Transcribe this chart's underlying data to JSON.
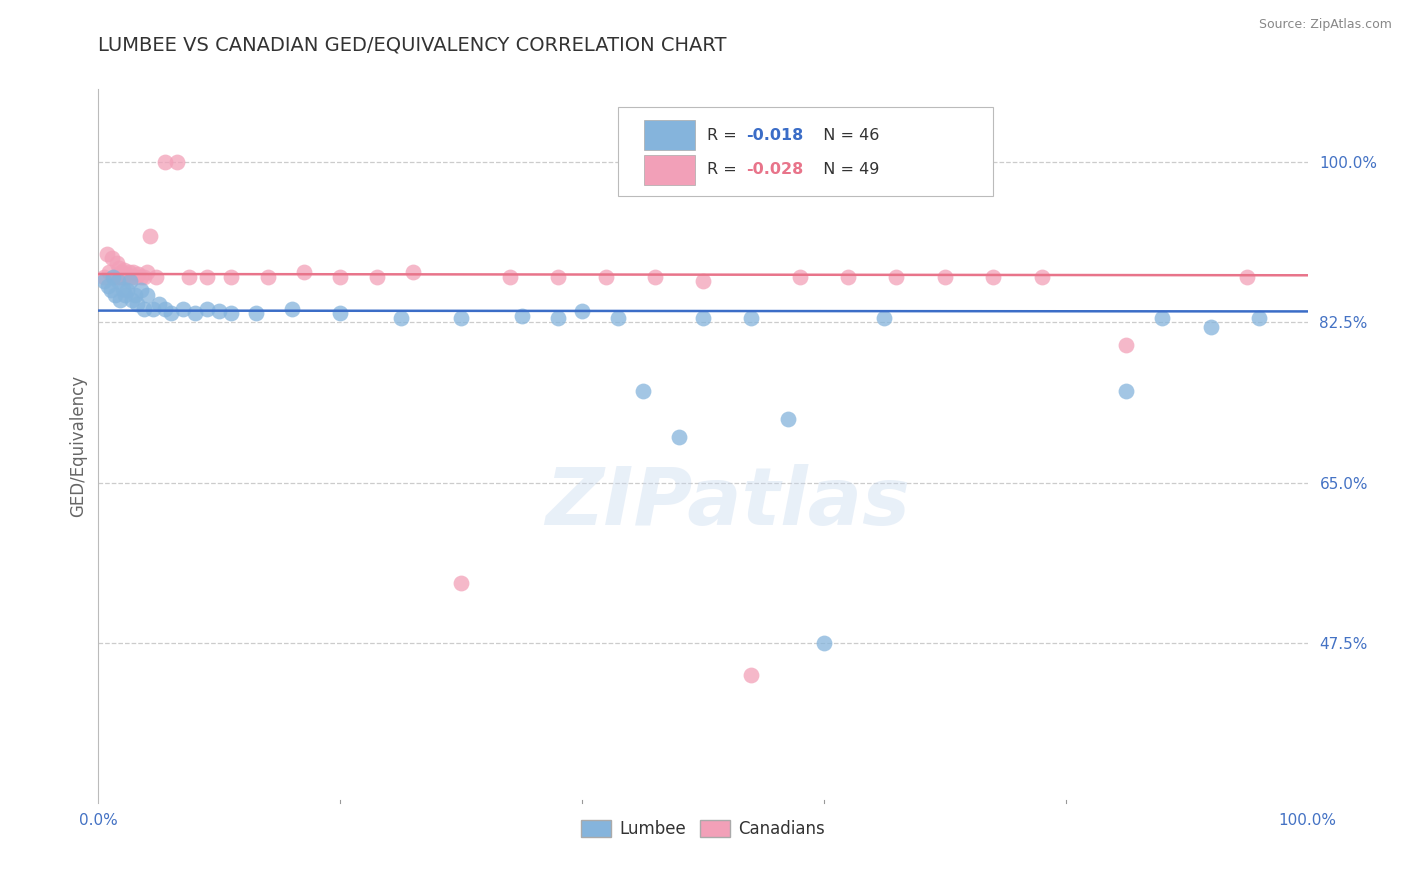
{
  "title": "LUMBEE VS CANADIAN GED/EQUIVALENCY CORRELATION CHART",
  "source": "Source: ZipAtlas.com",
  "ylabel": "GED/Equivalency",
  "xlim": [
    0.0,
    1.0
  ],
  "ylim": [
    0.3,
    1.08
  ],
  "ytick_vals": [
    0.475,
    0.65,
    0.825,
    1.0
  ],
  "ytick_labels": [
    "47.5%",
    "65.0%",
    "82.5%",
    "100.0%"
  ],
  "xtick_vals": [
    0.0,
    0.2,
    0.4,
    0.6,
    0.8,
    1.0
  ],
  "xtick_labels": [
    "0.0%",
    "",
    "",
    "",
    "",
    "100.0%"
  ],
  "watermark": "ZIPatlas",
  "lumbee_R": -0.018,
  "lumbee_N": 46,
  "canadian_R": -0.028,
  "canadian_N": 49,
  "lumbee_color": "#85B4DC",
  "canadian_color": "#F2A0B8",
  "lumbee_line_color": "#3B6DC7",
  "canadian_line_color": "#E8748A",
  "lumbee_x": [
    0.005,
    0.008,
    0.01,
    0.012,
    0.014,
    0.016,
    0.018,
    0.02,
    0.022,
    0.024,
    0.026,
    0.028,
    0.03,
    0.032,
    0.035,
    0.038,
    0.04,
    0.045,
    0.05,
    0.055,
    0.06,
    0.07,
    0.08,
    0.09,
    0.1,
    0.11,
    0.13,
    0.16,
    0.2,
    0.25,
    0.3,
    0.35,
    0.38,
    0.4,
    0.43,
    0.45,
    0.48,
    0.5,
    0.54,
    0.57,
    0.6,
    0.65,
    0.85,
    0.88,
    0.92,
    0.96
  ],
  "lumbee_y": [
    0.87,
    0.865,
    0.86,
    0.875,
    0.855,
    0.87,
    0.85,
    0.862,
    0.855,
    0.86,
    0.87,
    0.85,
    0.855,
    0.845,
    0.86,
    0.84,
    0.855,
    0.84,
    0.845,
    0.84,
    0.835,
    0.84,
    0.835,
    0.84,
    0.838,
    0.835,
    0.835,
    0.84,
    0.835,
    0.83,
    0.83,
    0.832,
    0.83,
    0.838,
    0.83,
    0.75,
    0.7,
    0.83,
    0.83,
    0.72,
    0.475,
    0.83,
    0.75,
    0.83,
    0.82,
    0.83
  ],
  "canadian_x": [
    0.005,
    0.007,
    0.009,
    0.011,
    0.013,
    0.015,
    0.016,
    0.017,
    0.018,
    0.019,
    0.02,
    0.021,
    0.022,
    0.023,
    0.025,
    0.027,
    0.029,
    0.031,
    0.033,
    0.035,
    0.038,
    0.04,
    0.043,
    0.048,
    0.055,
    0.065,
    0.075,
    0.09,
    0.11,
    0.14,
    0.17,
    0.2,
    0.23,
    0.26,
    0.3,
    0.34,
    0.38,
    0.42,
    0.46,
    0.5,
    0.54,
    0.58,
    0.62,
    0.66,
    0.7,
    0.74,
    0.78,
    0.85,
    0.95
  ],
  "canadian_y": [
    0.875,
    0.9,
    0.88,
    0.895,
    0.875,
    0.89,
    0.875,
    0.885,
    0.875,
    0.88,
    0.875,
    0.882,
    0.878,
    0.875,
    0.88,
    0.875,
    0.88,
    0.875,
    0.878,
    0.875,
    0.875,
    0.88,
    0.92,
    0.875,
    1.0,
    1.0,
    0.875,
    0.875,
    0.875,
    0.875,
    0.88,
    0.875,
    0.875,
    0.88,
    0.54,
    0.875,
    0.875,
    0.875,
    0.875,
    0.87,
    0.44,
    0.875,
    0.875,
    0.875,
    0.875,
    0.875,
    0.875,
    0.8,
    0.875
  ],
  "background_color": "#FFFFFF",
  "grid_color": "#CCCCCC",
  "title_color": "#333333",
  "axis_label_color": "#666666",
  "tick_color": "#4472C4",
  "source_color": "#888888",
  "legend_r_color_lumbee": "#3B6DC7",
  "legend_r_color_canadian": "#E8748A"
}
